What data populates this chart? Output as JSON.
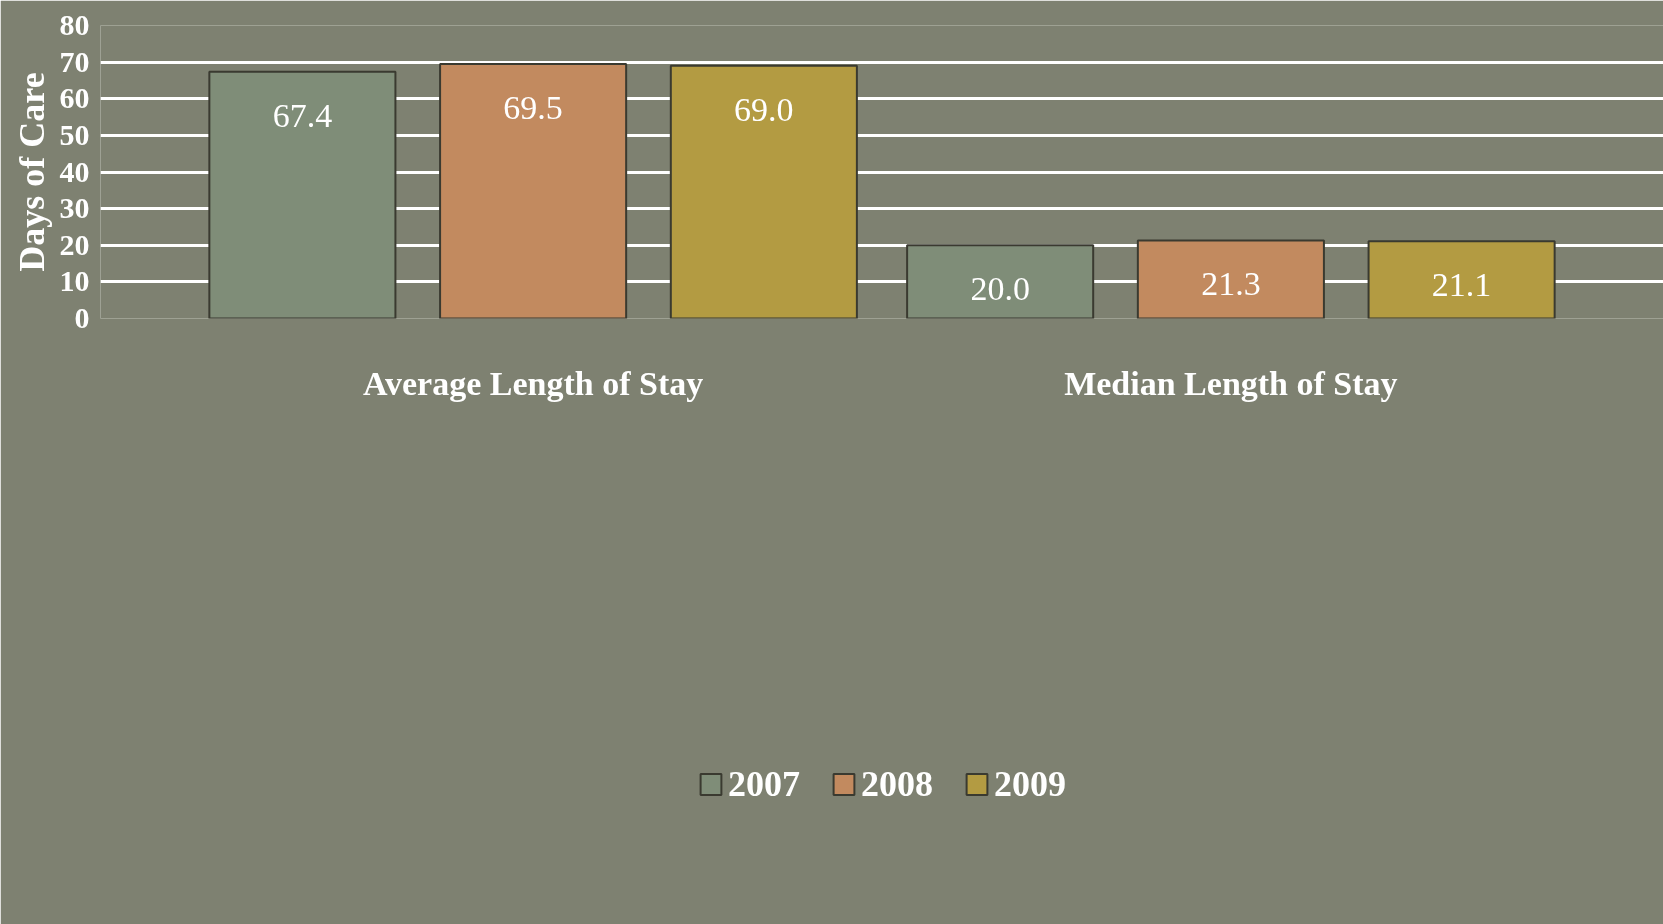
{
  "chart_data": {
    "type": "bar",
    "ylabel": "Days of Care",
    "categories": [
      "Average Length of Stay",
      "Median Length of Stay"
    ],
    "series": [
      {
        "name": "2007",
        "color": "#7f8d78",
        "values": [
          67.4,
          20.0
        ]
      },
      {
        "name": "2008",
        "color": "#c28a5f",
        "values": [
          69.5,
          21.3
        ]
      },
      {
        "name": "2009",
        "color": "#b39b42",
        "values": [
          69.0,
          21.1
        ]
      }
    ],
    "value_labels": [
      [
        "67.4",
        "20.0"
      ],
      [
        "69.5",
        "21.3"
      ],
      [
        "69.0",
        "21.1"
      ]
    ],
    "ylim": [
      0,
      80
    ],
    "yticks": [
      0,
      10,
      20,
      30,
      40,
      50,
      60,
      70,
      80
    ],
    "grid": "y",
    "legend": "bottom"
  }
}
